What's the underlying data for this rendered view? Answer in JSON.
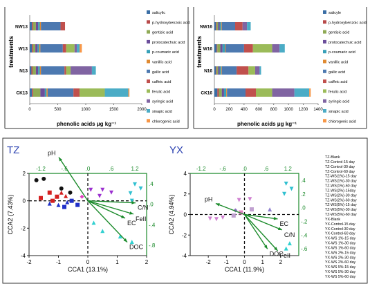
{
  "legend_items": [
    {
      "label": "salicylic",
      "color": "#3a6ea5"
    },
    {
      "label": "p-hydroxybenzoic acid",
      "color": "#b84a4a"
    },
    {
      "label": "gentisic acid",
      "color": "#8faa55"
    },
    {
      "label": "protocatechuic acid",
      "color": "#6b4e9b"
    },
    {
      "label": "p-coumaric acid",
      "color": "#37a0b8"
    },
    {
      "label": "vanillic acid",
      "color": "#e08a32"
    },
    {
      "label": "gallic acid",
      "color": "#4d79b0"
    },
    {
      "label": "caffeic acid",
      "color": "#c0504d"
    },
    {
      "label": "ferulic acid",
      "color": "#9bbb59"
    },
    {
      "label": "syringic acid",
      "color": "#8064a2"
    },
    {
      "label": "sinapic acid",
      "color": "#4bacc6"
    },
    {
      "label": "chlorogenic acid",
      "color": "#f79646"
    }
  ],
  "legend_labels_right": [
    "salicyle",
    "p-hydroxybenzoic acid",
    "gentisic acid",
    "protocatechuic acid",
    "p-coumaric acid",
    "vanillic acid",
    "gallic acid",
    "caffeic acid",
    "ferulic acid",
    "syringic acid",
    "sinapic acid",
    "chlorogenic acid"
  ],
  "pca_legend": [
    "TZ-Blank",
    "TZ-Control-15 day",
    "TZ-Control-30 day",
    "TZ-Control-60 day",
    "TZ-WS(1%)-15 day",
    "TZ-WS(1%)-30 day",
    "TZ-WS(1%)-60 day",
    "TZ-WS(2%)-15day",
    "TZ-WS(2%)-30 day",
    "TZ-WS(2%)-60 day",
    "TZ-WS(5%)-15 day",
    "TZ-WS(5%)-30 day",
    "TZ-WS(5%)-60 day",
    "YX-Blank",
    "YX-Control-15 day",
    "YX-Control-30 day",
    "YX-Control-60 day",
    "YX-WS 1%-15 day",
    "YX-WS 1%-30 day",
    "YX-WS 1%-60 day",
    "YX-WS 2%-15 day",
    "YX-WS 2%-30 day",
    "YX-WS 2%-60 day",
    "YX-WS 5%-15 day",
    "YX-WS 5%-30 day",
    "YX-WS 5%-60 day"
  ],
  "chart_data": [
    {
      "type": "bar",
      "orientation": "horizontal",
      "stacked": true,
      "categories": [
        "NW13",
        "W13",
        "N13",
        "CK13"
      ],
      "xlabel": "phenolic acids μg kg⁻¹",
      "ylabel": "treatments",
      "xlim": [
        0,
        2000
      ],
      "xticks": [
        0,
        500,
        1000,
        1500,
        2000
      ],
      "series": [
        {
          "name": "salicylic",
          "values": [
            40,
            40,
            30,
            40
          ]
        },
        {
          "name": "p-hydroxybenzoic acid",
          "values": [
            20,
            20,
            20,
            20
          ]
        },
        {
          "name": "gentisic acid",
          "values": [
            50,
            40,
            60,
            130
          ]
        },
        {
          "name": "protocatechuic acid",
          "values": [
            40,
            40,
            40,
            80
          ]
        },
        {
          "name": "p-coumaric acid",
          "values": [
            30,
            30,
            30,
            30
          ]
        },
        {
          "name": "vanillic acid",
          "values": [
            20,
            20,
            20,
            20
          ]
        },
        {
          "name": "gallic acid",
          "values": [
            350,
            400,
            420,
            460
          ]
        },
        {
          "name": "caffeic acid",
          "values": [
            80,
            60,
            30,
            110
          ]
        },
        {
          "name": "ferulic acid",
          "values": [
            0,
            150,
            80,
            450
          ]
        },
        {
          "name": "syringic acid",
          "values": [
            0,
            40,
            380,
            0
          ]
        },
        {
          "name": "sinapic acid",
          "values": [
            0,
            50,
            70,
            420
          ]
        },
        {
          "name": "chlorogenic acid",
          "values": [
            0,
            40,
            0,
            20
          ]
        }
      ]
    },
    {
      "type": "bar",
      "orientation": "horizontal",
      "stacked": true,
      "categories": [
        "NW16",
        "W16",
        "N16",
        "CK16"
      ],
      "xlabel": "phenolic acids μg kg⁻¹",
      "ylabel": "treatments",
      "xlim": [
        0,
        1400
      ],
      "xticks": [
        0,
        200,
        400,
        600,
        800,
        1000,
        1200,
        1400
      ],
      "series": [
        {
          "name": "salicyle",
          "values": [
            20,
            30,
            20,
            40
          ]
        },
        {
          "name": "p-hydroxybenzoic acid",
          "values": [
            10,
            10,
            10,
            20
          ]
        },
        {
          "name": "gentisic acid",
          "values": [
            20,
            40,
            20,
            40
          ]
        },
        {
          "name": "protocatechuic acid",
          "values": [
            20,
            30,
            20,
            30
          ]
        },
        {
          "name": "p-coumaric acid",
          "values": [
            20,
            30,
            20,
            30
          ]
        },
        {
          "name": "vanillic acid",
          "values": [
            10,
            10,
            10,
            10
          ]
        },
        {
          "name": "gallic acid",
          "values": [
            180,
            250,
            200,
            250
          ]
        },
        {
          "name": "caffeic acid",
          "values": [
            100,
            120,
            160,
            140
          ]
        },
        {
          "name": "ferulic acid",
          "values": [
            0,
            260,
            90,
            220
          ]
        },
        {
          "name": "syringic acid",
          "values": [
            60,
            100,
            60,
            300
          ]
        },
        {
          "name": "sinapic acid",
          "values": [
            50,
            70,
            20,
            200
          ]
        },
        {
          "name": "chlorogenic acid",
          "values": [
            0,
            0,
            0,
            20
          ]
        }
      ]
    },
    {
      "type": "scatter",
      "title": "TZ",
      "xlabel": "CCA1  (13.1%)",
      "ylabel": "CCA2  (7.43%)",
      "xlim": [
        -2,
        2
      ],
      "ylim": [
        -4,
        2
      ],
      "xticks": [
        -2,
        -1,
        0,
        1,
        2
      ],
      "yticks": [
        -4,
        -2,
        0,
        2
      ],
      "top_ticks": [
        "-1.2",
        "-.6",
        ".0",
        ".6",
        "1.2"
      ],
      "right_ticks": [
        ".4",
        ".0",
        "-.4",
        "-.8"
      ],
      "points": [
        {
          "x": -1.75,
          "y": 1.5,
          "marker": "circle",
          "color": "#111111"
        },
        {
          "x": -1.5,
          "y": 1.6,
          "marker": "circle",
          "color": "#111111"
        },
        {
          "x": -0.9,
          "y": 0.9,
          "marker": "circle",
          "color": "#111111"
        },
        {
          "x": -0.6,
          "y": 0.6,
          "marker": "circle",
          "color": "#111111"
        },
        {
          "x": -1.6,
          "y": 0.2,
          "marker": "square",
          "color": "#d42020"
        },
        {
          "x": -1.3,
          "y": 0.6,
          "marker": "square",
          "color": "#d42020"
        },
        {
          "x": -1.05,
          "y": 0.3,
          "marker": "square",
          "color": "#d42020"
        },
        {
          "x": -1.2,
          "y": 0.0,
          "marker": "square",
          "color": "#d42020"
        },
        {
          "x": -0.9,
          "y": 0.6,
          "marker": "triangle",
          "color": "#d42020"
        },
        {
          "x": -0.75,
          "y": 0.35,
          "marker": "triangle",
          "color": "#d42020"
        },
        {
          "x": -1.3,
          "y": -0.2,
          "marker": "triangle",
          "color": "#2030c8"
        },
        {
          "x": -1.0,
          "y": -0.3,
          "marker": "triangle",
          "color": "#2030c8"
        },
        {
          "x": -0.7,
          "y": -0.1,
          "marker": "triangle",
          "color": "#2030c8"
        },
        {
          "x": -0.55,
          "y": 0.0,
          "marker": "square",
          "color": "#2030c8"
        },
        {
          "x": -0.35,
          "y": -0.3,
          "marker": "square",
          "color": "#2030c8"
        },
        {
          "x": -0.8,
          "y": -0.45,
          "marker": "square",
          "color": "#2030c8"
        },
        {
          "x": -0.2,
          "y": 0.3,
          "marker": "diamond",
          "color": "#e040c0"
        },
        {
          "x": 0.1,
          "y": 0.8,
          "marker": "inverted",
          "color": "#9b30d0"
        },
        {
          "x": 0.5,
          "y": 0.8,
          "marker": "inverted",
          "color": "#9b30d0"
        },
        {
          "x": 0.8,
          "y": 0.6,
          "marker": "inverted",
          "color": "#9b30d0"
        },
        {
          "x": 0.4,
          "y": 0.35,
          "marker": "inverted",
          "color": "#9b30d0"
        },
        {
          "x": 1.6,
          "y": 1.2,
          "marker": "inverted",
          "color": "#30c0d0"
        },
        {
          "x": 1.8,
          "y": 0.9,
          "marker": "inverted",
          "color": "#30c0d0"
        },
        {
          "x": 1.45,
          "y": 0.55,
          "marker": "inverted",
          "color": "#30c0d0"
        },
        {
          "x": 1.5,
          "y": 0.0,
          "marker": "inverted",
          "color": "#30c0d0"
        },
        {
          "x": 0.2,
          "y": -1.6,
          "marker": "triangle",
          "color": "#30d0d0"
        },
        {
          "x": 0.5,
          "y": -2.2,
          "marker": "triangle",
          "color": "#30d0d0"
        },
        {
          "x": 1.1,
          "y": -2.6,
          "marker": "triangle",
          "color": "#30d0d0"
        },
        {
          "x": 1.5,
          "y": -3.0,
          "marker": "triangle",
          "color": "#30d0d0"
        }
      ],
      "vectors": [
        {
          "label": "pH",
          "x": -0.7,
          "y": 1.05
        },
        {
          "label": "C/N",
          "x": 1.15,
          "y": -0.05
        },
        {
          "label": "EC",
          "x": 0.9,
          "y": -0.42
        },
        {
          "label": "FeII",
          "x": 1.1,
          "y": -0.32
        },
        {
          "label": "DOC",
          "x": 0.95,
          "y": -1.0
        }
      ]
    },
    {
      "type": "scatter",
      "title": "YX",
      "xlabel": "CCA1  (11.9%)",
      "ylabel": "CCA2  (4.94%)",
      "xlim": [
        -3,
        3
      ],
      "ylim": [
        -4,
        4
      ],
      "xticks": [
        -2,
        -1,
        0,
        1,
        2
      ],
      "yticks": [
        -4,
        -2,
        0,
        2,
        4
      ],
      "top_ticks": [
        "-1.2",
        "-.6",
        ".0",
        ".6",
        "1.2"
      ],
      "right_ticks": [
        ".4",
        ".2",
        ".0",
        "-.2",
        "-.4",
        "-.6"
      ],
      "points": [
        {
          "x": -1.9,
          "y": -0.4,
          "marker": "inverted",
          "color": "#d080d0"
        },
        {
          "x": -1.55,
          "y": -0.45,
          "marker": "inverted",
          "color": "#d080d0"
        },
        {
          "x": -1.2,
          "y": -0.3,
          "marker": "inverted",
          "color": "#d080d0"
        },
        {
          "x": -0.6,
          "y": -0.1,
          "marker": "square",
          "color": "#c0a0d0"
        },
        {
          "x": -0.2,
          "y": 0.2,
          "marker": "square",
          "color": "#e080c0"
        },
        {
          "x": -0.5,
          "y": 0.4,
          "marker": "diamond",
          "color": "#9070c0"
        },
        {
          "x": 0.4,
          "y": 0.5,
          "marker": "square",
          "color": "#c0a0d0"
        },
        {
          "x": -0.3,
          "y": 1.4,
          "marker": "inverted",
          "color": "#d080d0"
        },
        {
          "x": 0.3,
          "y": 1.5,
          "marker": "inverted",
          "color": "#d080d0"
        },
        {
          "x": 1.4,
          "y": 0.5,
          "marker": "triangle",
          "color": "#9080d0"
        },
        {
          "x": 2.3,
          "y": 3.0,
          "marker": "inverted",
          "color": "#30c0d0"
        },
        {
          "x": 2.6,
          "y": 2.5,
          "marker": "inverted",
          "color": "#30c0d0"
        },
        {
          "x": 2.2,
          "y": 2.0,
          "marker": "inverted",
          "color": "#30c0d0"
        },
        {
          "x": 2.3,
          "y": -3.3,
          "marker": "triangle",
          "color": "#30d0d0"
        },
        {
          "x": 2.5,
          "y": -2.8,
          "marker": "triangle",
          "color": "#30d0d0"
        }
      ],
      "vectors": [
        {
          "label": "pH",
          "x": -0.65,
          "y": 0.25
        },
        {
          "label": "EC",
          "x": 0.75,
          "y": -0.1
        },
        {
          "label": "C/N",
          "x": 0.85,
          "y": -0.35
        },
        {
          "label": "DOC",
          "x": 0.52,
          "y": -0.78
        },
        {
          "label": "FeII",
          "x": 0.75,
          "y": -0.82
        }
      ]
    }
  ]
}
